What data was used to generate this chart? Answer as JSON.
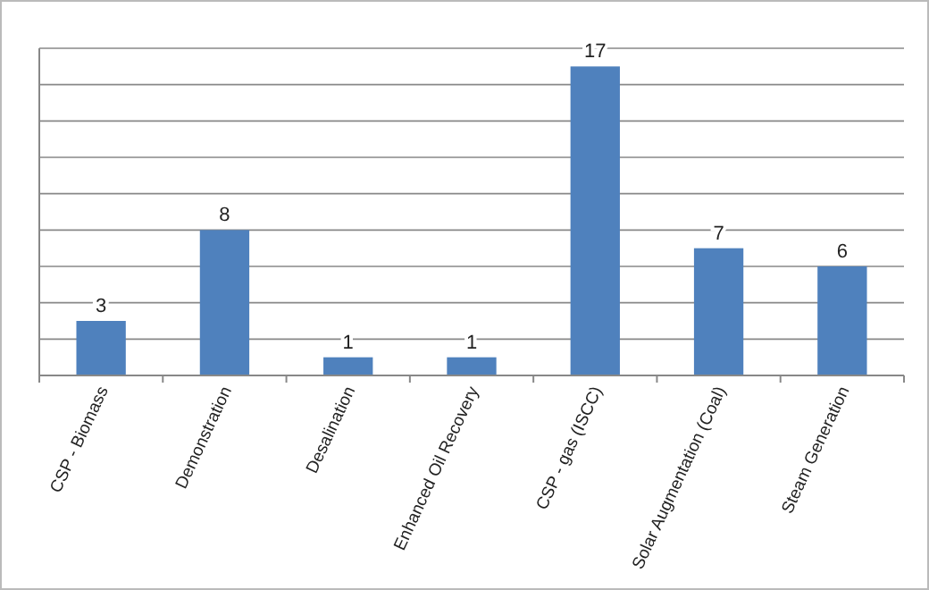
{
  "chart_data": {
    "type": "bar",
    "categories": [
      "CSP - Biomass",
      "Demonstration",
      "Desalination",
      "Enhanced Oil Recovery",
      "CSP - gas (ISCC)",
      "Solar Augmentation (Coal)",
      "Steam Generation"
    ],
    "values": [
      3,
      8,
      1,
      1,
      17,
      7,
      6
    ],
    "color": "#4f81bd",
    "ylim": [
      0,
      18
    ],
    "yticks": [
      {
        "value": 0,
        "label": null
      },
      {
        "value": 2,
        "label": null
      },
      {
        "value": 4,
        "label": null
      },
      {
        "value": 6,
        "label": null
      },
      {
        "value": 8,
        "label": null
      },
      {
        "value": 10,
        "label": null
      },
      {
        "value": 12,
        "label": null
      },
      {
        "value": 14,
        "label": null
      },
      {
        "value": 16,
        "label": null
      },
      {
        "value": 18,
        "label": null
      }
    ],
    "tick_labels": "x",
    "grid": "y",
    "data_labels": true
  }
}
